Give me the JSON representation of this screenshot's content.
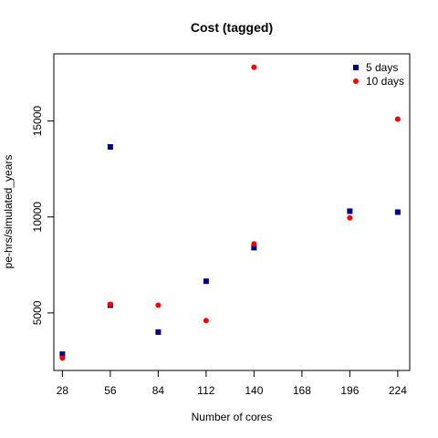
{
  "chart_data": {
    "type": "scatter",
    "title": "Cost (tagged)",
    "xlabel": "Number of cores",
    "ylabel": "pe-hrs/simulated_years",
    "x_ticks": [
      28,
      56,
      84,
      112,
      140,
      168,
      196,
      224
    ],
    "y_ticks": [
      5000,
      10000,
      15000
    ],
    "xlim": [
      23,
      231
    ],
    "ylim": [
      2000,
      18500
    ],
    "grid": false,
    "legend_position": "top-right",
    "series": [
      {
        "name": "5 days",
        "marker": "square",
        "color": "#00008b",
        "points": [
          {
            "x": 28,
            "y": 2850
          },
          {
            "x": 56,
            "y": 13650
          },
          {
            "x": 56,
            "y": 5400
          },
          {
            "x": 84,
            "y": 4000
          },
          {
            "x": 112,
            "y": 6650
          },
          {
            "x": 140,
            "y": 8400
          },
          {
            "x": 196,
            "y": 10300
          },
          {
            "x": 224,
            "y": 10250
          }
        ]
      },
      {
        "name": "10 days",
        "marker": "circle",
        "color": "#ff0000",
        "points": [
          {
            "x": 28,
            "y": 2650
          },
          {
            "x": 56,
            "y": 5450
          },
          {
            "x": 84,
            "y": 5400
          },
          {
            "x": 112,
            "y": 4600
          },
          {
            "x": 140,
            "y": 17800
          },
          {
            "x": 140,
            "y": 8600
          },
          {
            "x": 196,
            "y": 9950
          },
          {
            "x": 224,
            "y": 15100
          }
        ]
      }
    ]
  }
}
